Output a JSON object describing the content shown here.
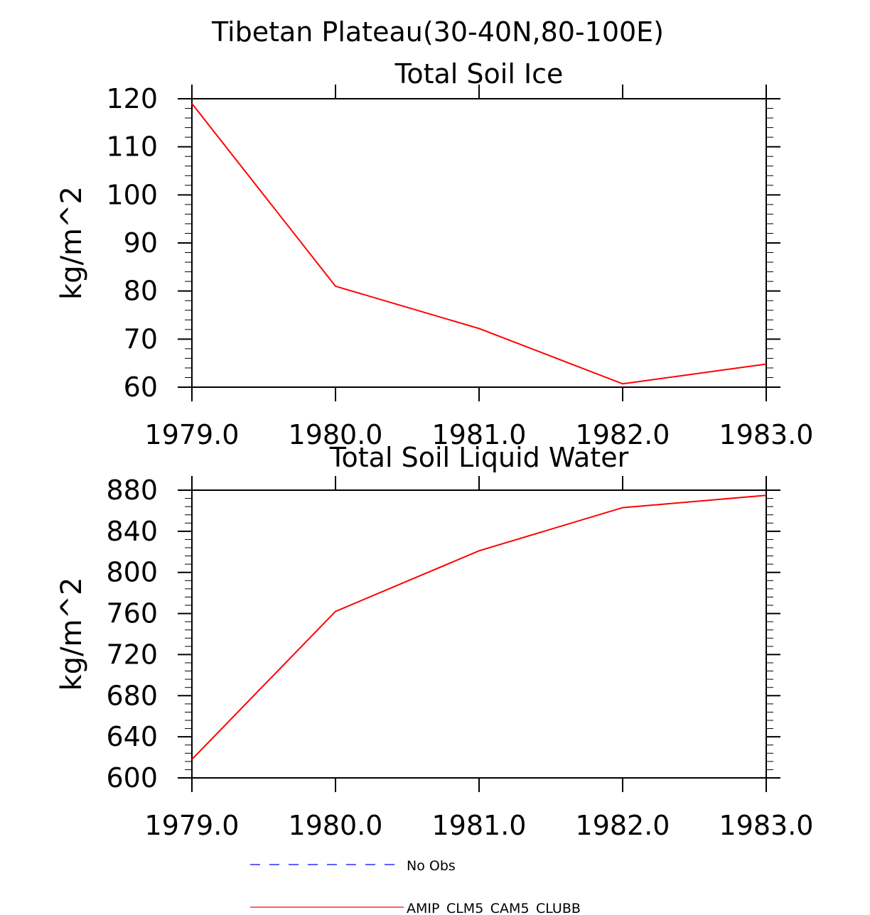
{
  "figure": {
    "title": "Tibetan Plateau(30-40N,80-100E)"
  },
  "chart_data": [
    {
      "type": "line",
      "title": "Total Soil Ice",
      "xlabel": "",
      "ylabel": "kg/m^2",
      "x": [
        1979.0,
        1980.0,
        1981.0,
        1982.0,
        1983.0
      ],
      "xlim": [
        1979.0,
        1983.0
      ],
      "ylim": [
        60,
        120
      ],
      "x_tick_labels": [
        "1979.0",
        "1980.0",
        "1981.0",
        "1982.0",
        "1983.0"
      ],
      "y_ticks": [
        60,
        70,
        80,
        90,
        100,
        110,
        120
      ],
      "y_tick_labels": [
        "60",
        "70",
        "80",
        "90",
        "100",
        "110",
        "120"
      ],
      "grid": false,
      "series": [
        {
          "name": "AMIP_CLM5_CAM5_CLUBB",
          "color": "#ff0000",
          "values": [
            119,
            81,
            72.2,
            60.7,
            64.8
          ]
        }
      ]
    },
    {
      "type": "line",
      "title": "Total Soil Liquid Water",
      "xlabel": "",
      "ylabel": "kg/m^2",
      "x": [
        1979.0,
        1980.0,
        1981.0,
        1982.0,
        1983.0
      ],
      "xlim": [
        1979.0,
        1983.0
      ],
      "ylim": [
        600,
        880
      ],
      "x_tick_labels": [
        "1979.0",
        "1980.0",
        "1981.0",
        "1982.0",
        "1983.0"
      ],
      "y_ticks": [
        600,
        640,
        680,
        720,
        760,
        800,
        840,
        880
      ],
      "y_tick_labels": [
        "600",
        "640",
        "680",
        "720",
        "760",
        "800",
        "840",
        "880"
      ],
      "grid": false,
      "series": [
        {
          "name": "AMIP_CLM5_CAM5_CLUBB",
          "color": "#ff0000",
          "values": [
            618,
            762,
            821,
            863,
            875
          ]
        }
      ]
    }
  ],
  "legend": {
    "placement": "bottom",
    "entries": [
      {
        "label": "No Obs",
        "color": "#0000ff",
        "style": "dashed"
      },
      {
        "label": "AMIP_CLM5_CAM5_CLUBB",
        "color": "#ff0000",
        "style": "solid"
      }
    ]
  }
}
